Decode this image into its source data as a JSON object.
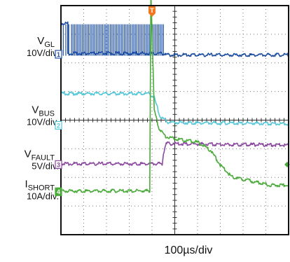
{
  "chart_data": {
    "type": "line",
    "x_divisions": 10,
    "y_divisions": 8,
    "grid": true,
    "x_axis": {
      "label": "100µs/div"
    },
    "trigger_marker": {
      "label": "T",
      "x_div": 4.0,
      "color": "#f07820"
    },
    "channels": [
      {
        "id": "1",
        "name": "V",
        "subscript": "GL",
        "scale": "10V/div.",
        "color": "#1f4fa3",
        "label_y_div": 1.35,
        "ref_y_div": 1.7,
        "points": [
          [
            0,
            0.65
          ],
          [
            0.3,
            0.65
          ],
          [
            0.3,
            1.7
          ],
          [
            4.6,
            1.7
          ],
          [
            4.6,
            1.75
          ],
          [
            10,
            1.75
          ]
        ],
        "switching": {
          "from_x": 0.1,
          "to_x": 4.55,
          "high_y": 0.65,
          "low_y": 1.75,
          "period_div": 0.11
        }
      },
      {
        "id": "2",
        "name": "V",
        "subscript": "BUS",
        "scale": "10V/div.",
        "color": "#55c8d8",
        "label_y_div": 3.75,
        "ref_y_div": 4.18,
        "points": [
          [
            0,
            3.1
          ],
          [
            3.9,
            3.1
          ],
          [
            4.1,
            3.25
          ],
          [
            4.35,
            3.9
          ],
          [
            4.7,
            4.1
          ],
          [
            5.5,
            4.12
          ],
          [
            10,
            4.15
          ]
        ]
      },
      {
        "id": "3",
        "name": "V",
        "subscript": "FAULT",
        "scale": "5V/div.",
        "color": "#8b4aa0",
        "label_y_div": 5.3,
        "ref_y_div": 5.55,
        "points": [
          [
            0,
            5.55
          ],
          [
            4.45,
            5.55
          ],
          [
            4.5,
            5.2
          ],
          [
            4.6,
            4.85
          ],
          [
            10,
            4.9
          ]
        ]
      },
      {
        "id": "4",
        "name": "I",
        "subscript": "SHORT",
        "scale": "10A/div.",
        "color": "#4aab3a",
        "label_y_div": 6.35,
        "ref_y_div": 6.5,
        "points": [
          [
            0,
            6.5
          ],
          [
            3.9,
            6.5
          ],
          [
            3.95,
            -0.5
          ],
          [
            4.1,
            3.7
          ],
          [
            4.3,
            4.3
          ],
          [
            4.6,
            4.6
          ],
          [
            5.2,
            4.7
          ],
          [
            6.0,
            4.8
          ],
          [
            6.6,
            5.1
          ],
          [
            7.0,
            5.6
          ],
          [
            7.5,
            6.0
          ],
          [
            8.0,
            6.1
          ],
          [
            8.6,
            6.2
          ],
          [
            9.2,
            6.3
          ],
          [
            10,
            6.3
          ]
        ]
      }
    ]
  }
}
